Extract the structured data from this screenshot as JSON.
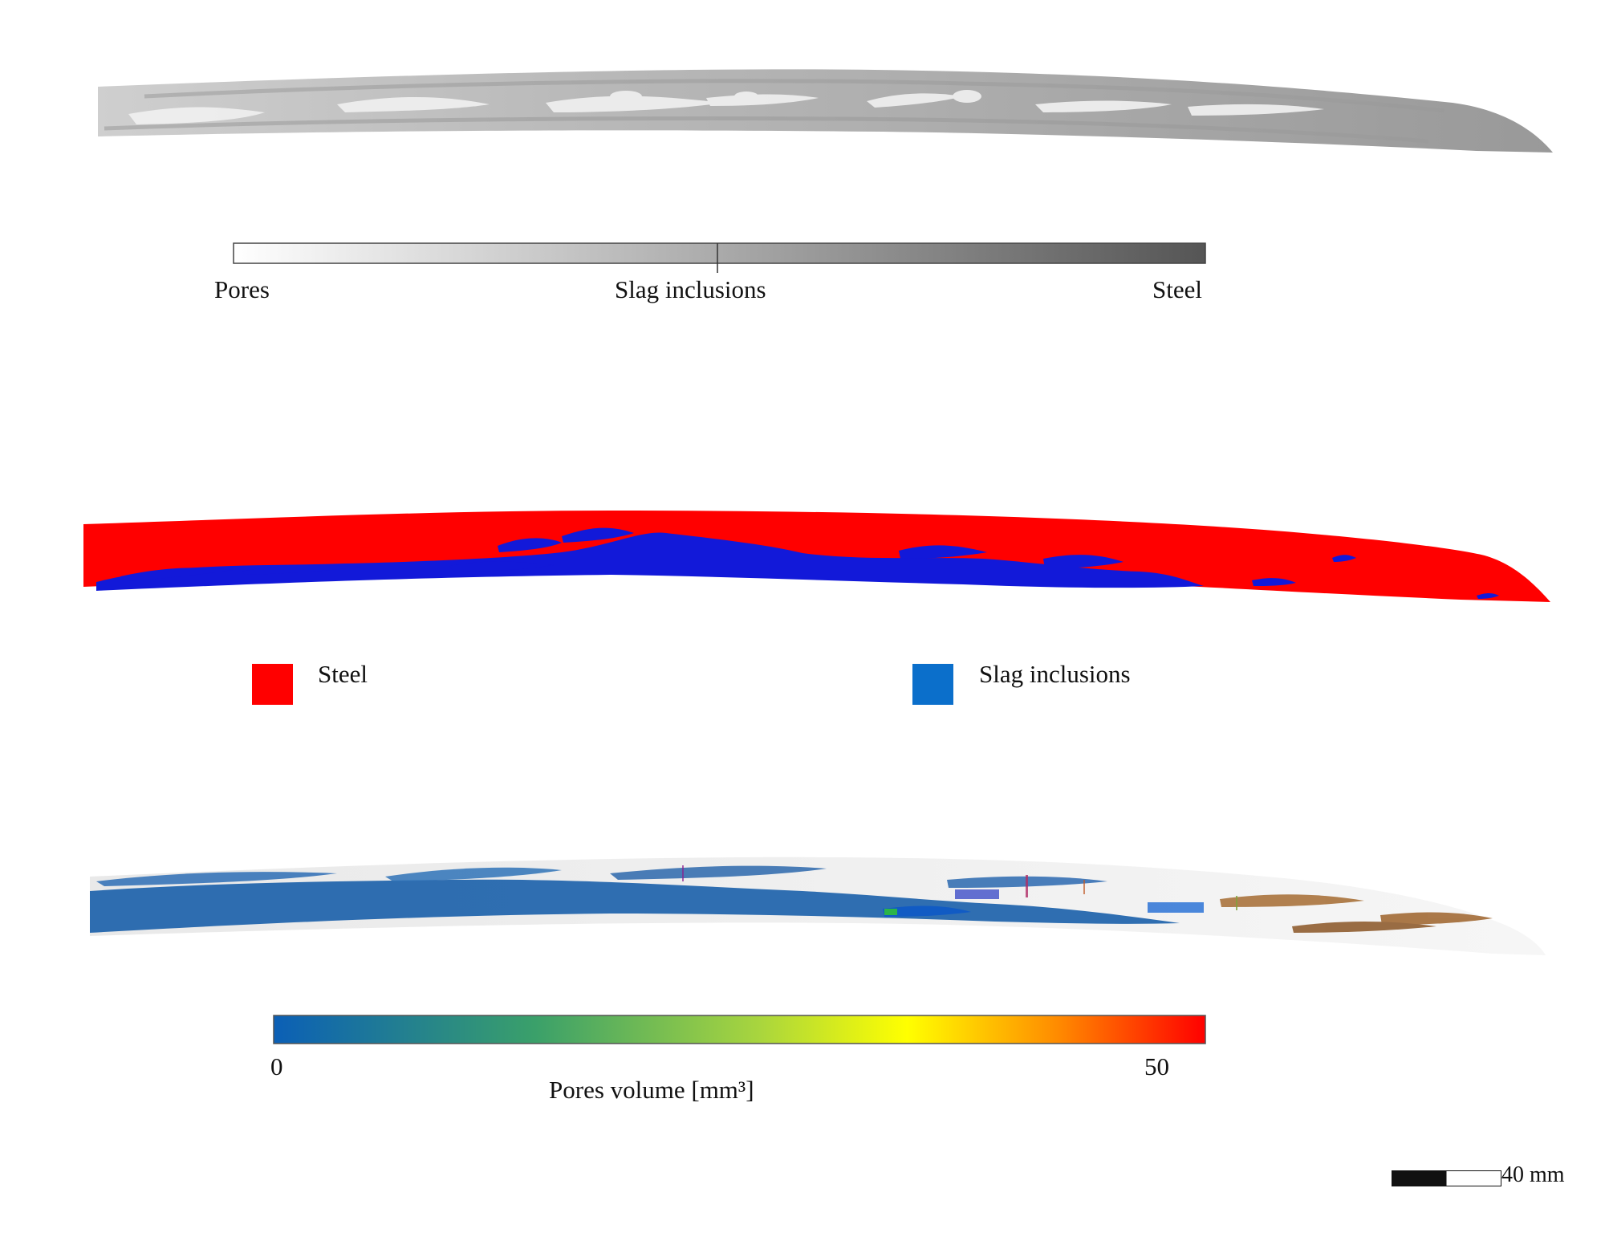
{
  "ct_scan_scale": {
    "left_label": "Pores",
    "middle_label": "Slag inclusions",
    "right_label": "Steel"
  },
  "segmentation_legend": {
    "items": [
      {
        "label": "Steel",
        "color": "#ff0000"
      },
      {
        "label": "Slag inclusions",
        "color": "#0b6fcb"
      }
    ]
  },
  "pore_scale": {
    "min_label": "0",
    "max_label": "50",
    "title": "Pores volume [mm³]",
    "colors": [
      "#0b5fb6",
      "#8bc34a",
      "#ffff00",
      "#ff8c00",
      "#ff0000"
    ]
  },
  "scale_bar": {
    "label": "40 mm"
  }
}
